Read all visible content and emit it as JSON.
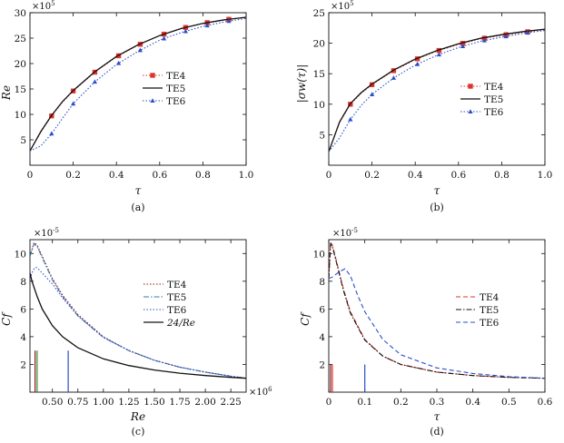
{
  "figure": {
    "width": 621,
    "height": 488
  },
  "chart_data": [
    {
      "panel": "a",
      "caption": "(a)",
      "type": "line",
      "xlabel": "τ",
      "ylabel": "Re",
      "multiplier": "×10^5",
      "xlim": [
        0,
        1.0
      ],
      "ylim": [
        0,
        30
      ],
      "xticks": [
        "0",
        "0.2",
        "0.4",
        "0.6",
        "0.8",
        "1.0"
      ],
      "yticks": [
        "5",
        "10",
        "15",
        "20",
        "25",
        "30"
      ],
      "legend_position": "right",
      "series": [
        {
          "name": "TE4",
          "color": "#e0342e",
          "style": "dotted",
          "marker": "square",
          "x": [
            0,
            0.05,
            0.1,
            0.15,
            0.2,
            0.3,
            0.4,
            0.5,
            0.6,
            0.7,
            0.8,
            0.9,
            1.0
          ],
          "y": [
            2.8,
            6.5,
            9.7,
            12.4,
            14.6,
            18.3,
            21.3,
            23.6,
            25.5,
            26.9,
            27.9,
            28.6,
            29.1
          ],
          "markers_x": [
            0.1,
            0.2,
            0.3,
            0.41,
            0.51,
            0.62,
            0.72,
            0.82,
            0.92
          ]
        },
        {
          "name": "TE5",
          "color": "#111111",
          "style": "solid",
          "x": [
            0,
            0.05,
            0.1,
            0.15,
            0.2,
            0.3,
            0.4,
            0.5,
            0.6,
            0.7,
            0.8,
            0.9,
            1.0
          ],
          "y": [
            2.8,
            6.6,
            9.8,
            12.5,
            14.7,
            18.4,
            21.4,
            23.7,
            25.5,
            26.9,
            27.9,
            28.6,
            29.1
          ]
        },
        {
          "name": "TE6",
          "color": "#2a4fc8",
          "style": "dotted",
          "marker": "triangle",
          "x": [
            0,
            0.05,
            0.1,
            0.15,
            0.2,
            0.3,
            0.4,
            0.5,
            0.6,
            0.7,
            0.8,
            0.9,
            1.0
          ],
          "y": [
            2.8,
            3.8,
            6.2,
            9.2,
            12.1,
            16.4,
            19.8,
            22.4,
            24.6,
            26.1,
            27.3,
            28.2,
            28.9
          ],
          "markers_x": [
            0.1,
            0.2,
            0.3,
            0.41,
            0.51,
            0.62,
            0.72,
            0.82,
            0.92
          ]
        }
      ]
    },
    {
      "panel": "b",
      "caption": "(b)",
      "type": "line",
      "xlabel": "τ",
      "ylabel": "|σw(τ)|",
      "multiplier": "×10^5",
      "xlim": [
        0,
        1.0
      ],
      "ylim": [
        0,
        25
      ],
      "xticks": [
        "0",
        "0.2",
        "0.4",
        "0.6",
        "0.8",
        "1.0"
      ],
      "yticks": [
        "5",
        "10",
        "15",
        "20",
        "25"
      ],
      "legend_position": "right",
      "series": [
        {
          "name": "TE4",
          "color": "#e0342e",
          "style": "dotted",
          "marker": "square",
          "x": [
            0,
            0.05,
            0.1,
            0.15,
            0.2,
            0.3,
            0.4,
            0.5,
            0.6,
            0.7,
            0.8,
            0.9,
            1.0
          ],
          "y": [
            2.2,
            7.0,
            10.0,
            11.8,
            13.2,
            15.5,
            17.3,
            18.7,
            19.8,
            20.7,
            21.3,
            21.8,
            22.2
          ],
          "markers_x": [
            0.1,
            0.2,
            0.3,
            0.41,
            0.51,
            0.62,
            0.72,
            0.82,
            0.92
          ]
        },
        {
          "name": "TE5",
          "color": "#111111",
          "style": "solid",
          "x": [
            0,
            0.05,
            0.1,
            0.15,
            0.2,
            0.3,
            0.4,
            0.5,
            0.6,
            0.7,
            0.8,
            0.9,
            1.0
          ],
          "y": [
            2.2,
            7.1,
            10.1,
            11.9,
            13.3,
            15.6,
            17.4,
            18.8,
            19.9,
            20.8,
            21.4,
            21.9,
            22.3
          ]
        },
        {
          "name": "TE6",
          "color": "#2a4fc8",
          "style": "dotted",
          "marker": "triangle",
          "x": [
            0,
            0.05,
            0.1,
            0.15,
            0.2,
            0.3,
            0.4,
            0.5,
            0.6,
            0.7,
            0.8,
            0.9,
            1.0
          ],
          "y": [
            2.2,
            4.5,
            7.5,
            9.8,
            11.6,
            14.3,
            16.4,
            18.0,
            19.3,
            20.3,
            21.0,
            21.6,
            22.1
          ],
          "markers_x": [
            0.1,
            0.2,
            0.3,
            0.41,
            0.51,
            0.62,
            0.72,
            0.82,
            0.92
          ]
        }
      ]
    },
    {
      "panel": "c",
      "caption": "(c)",
      "type": "line",
      "xlabel": "Re",
      "ylabel": "Cf",
      "multiplier_y": "×10^-5",
      "multiplier_x": "×10^6",
      "xlim": [
        0.28,
        2.4
      ],
      "ylim": [
        0,
        11
      ],
      "xticks": [
        "0.50",
        "0.75",
        "1.00",
        "1.25",
        "1.50",
        "1.75",
        "2.00",
        "2.25"
      ],
      "xtick_values": [
        0.5,
        0.75,
        1.0,
        1.25,
        1.5,
        1.75,
        2.0,
        2.25
      ],
      "yticks": [
        "2",
        "4",
        "6",
        "8",
        "10"
      ],
      "legend_position": "right",
      "series": [
        {
          "name": "TE4",
          "color": "#8b1a1a",
          "style": "dotted",
          "x": [
            0.28,
            0.32,
            0.35,
            0.4,
            0.5,
            0.6,
            0.75,
            1.0,
            1.25,
            1.5,
            1.75,
            2.0,
            2.25,
            2.4
          ],
          "y": [
            9.8,
            10.8,
            10.6,
            9.8,
            8.2,
            7.0,
            5.6,
            4.0,
            3.0,
            2.3,
            1.8,
            1.45,
            1.15,
            1.0
          ]
        },
        {
          "name": "TE5",
          "color": "#3a7ab0",
          "style": "dashdot",
          "x": [
            0.28,
            0.32,
            0.35,
            0.4,
            0.5,
            0.6,
            0.75,
            1.0,
            1.25,
            1.5,
            1.75,
            2.0,
            2.25,
            2.4
          ],
          "y": [
            9.8,
            10.7,
            10.5,
            9.7,
            8.1,
            6.9,
            5.5,
            3.95,
            3.0,
            2.3,
            1.8,
            1.45,
            1.15,
            1.0
          ]
        },
        {
          "name": "TE6",
          "color": "#2a4fc8",
          "style": "dotted",
          "x": [
            0.28,
            0.3,
            0.32,
            0.34,
            0.36,
            0.4,
            0.5,
            0.6,
            0.75,
            1.0,
            1.25,
            1.5,
            1.75,
            2.0,
            2.25,
            2.4
          ],
          "y": [
            8.2,
            8.6,
            8.9,
            9.0,
            8.9,
            8.6,
            7.8,
            6.8,
            5.5,
            3.95,
            3.0,
            2.3,
            1.8,
            1.45,
            1.15,
            1.0
          ]
        },
        {
          "name": "24/Re",
          "color": "#111111",
          "style": "solid",
          "x": [
            0.28,
            0.3,
            0.35,
            0.4,
            0.5,
            0.6,
            0.75,
            1.0,
            1.25,
            1.5,
            1.75,
            2.0,
            2.25,
            2.4
          ],
          "y": [
            8.6,
            8.0,
            6.9,
            6.0,
            4.8,
            4.0,
            3.2,
            2.4,
            1.92,
            1.6,
            1.37,
            1.2,
            1.07,
            1.0
          ]
        }
      ],
      "markers": [
        {
          "x": 0.33,
          "height": 3.0,
          "color": "#8b1a1a"
        },
        {
          "x": 0.35,
          "height": 3.0,
          "color": "#2f8f2f"
        },
        {
          "x": 0.655,
          "height": 3.0,
          "color": "#2a4fc8"
        }
      ]
    },
    {
      "panel": "d",
      "caption": "(d)",
      "type": "line",
      "xlabel": "τ",
      "ylabel": "Cf",
      "multiplier_y": "×10^-5",
      "xlim": [
        0,
        0.6
      ],
      "ylim": [
        0,
        11
      ],
      "xticks": [
        "0",
        "0.1",
        "0.2",
        "0.3",
        "0.4",
        "0.5",
        "0.6"
      ],
      "yticks": [
        "2",
        "4",
        "6",
        "8",
        "10"
      ],
      "legend_position": "right",
      "series": [
        {
          "name": "TE4",
          "color": "#e0342e",
          "style": "dashed",
          "x": [
            0,
            0.005,
            0.01,
            0.02,
            0.04,
            0.06,
            0.1,
            0.15,
            0.2,
            0.3,
            0.4,
            0.5,
            0.6
          ],
          "y": [
            8.2,
            10.8,
            10.6,
            9.6,
            7.5,
            5.8,
            3.8,
            2.6,
            2.0,
            1.45,
            1.2,
            1.07,
            1.0
          ]
        },
        {
          "name": "TE5",
          "color": "#111111",
          "style": "dashdot",
          "x": [
            0,
            0.005,
            0.01,
            0.02,
            0.04,
            0.06,
            0.1,
            0.15,
            0.2,
            0.3,
            0.4,
            0.5,
            0.6
          ],
          "y": [
            8.2,
            10.7,
            10.5,
            9.5,
            7.4,
            5.7,
            3.75,
            2.6,
            2.0,
            1.45,
            1.2,
            1.07,
            1.0
          ]
        },
        {
          "name": "TE6",
          "color": "#2a4fc8",
          "style": "dashed",
          "x": [
            0,
            0.01,
            0.02,
            0.03,
            0.045,
            0.06,
            0.08,
            0.1,
            0.15,
            0.2,
            0.3,
            0.4,
            0.5,
            0.6
          ],
          "y": [
            8.2,
            8.3,
            8.5,
            8.7,
            8.9,
            8.4,
            7.0,
            5.8,
            3.8,
            2.7,
            1.75,
            1.35,
            1.12,
            1.0
          ]
        }
      ],
      "markers": [
        {
          "x": 0.005,
          "height": 2.0,
          "color": "#8b1a1a"
        },
        {
          "x": 0.01,
          "height": 2.0,
          "color": "#e0342e"
        },
        {
          "x": 0.1,
          "height": 2.0,
          "color": "#2a4fc8"
        }
      ]
    }
  ]
}
